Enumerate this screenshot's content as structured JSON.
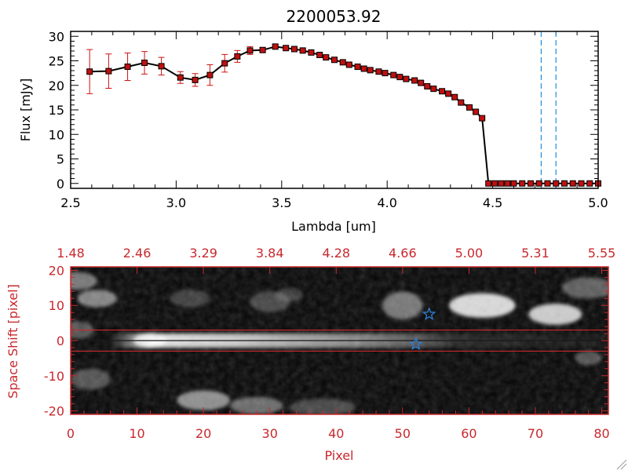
{
  "chart_data": [
    {
      "type": "line",
      "title": "2200053.92",
      "xlabel": "Lambda [um]",
      "ylabel": "Flux [mJy]",
      "xlim": [
        2.5,
        5.0
      ],
      "ylim": [
        -1,
        31
      ],
      "x_ticks": [
        "2.5",
        "3.0",
        "3.5",
        "4.0",
        "4.5",
        "5.0"
      ],
      "y_ticks": [
        "0",
        "5",
        "10",
        "15",
        "20",
        "25",
        "30"
      ],
      "series": [
        {
          "x": [
            2.59,
            2.68,
            2.77,
            2.85,
            2.93,
            3.02,
            3.09,
            3.16,
            3.23,
            3.29,
            3.35,
            3.41,
            3.47,
            3.52,
            3.56,
            3.6,
            3.64,
            3.68,
            3.71,
            3.75,
            3.79,
            3.82,
            3.86,
            3.89,
            3.92,
            3.96,
            3.99,
            4.03,
            4.06,
            4.09,
            4.13,
            4.16,
            4.19,
            4.22,
            4.26,
            4.29,
            4.32,
            4.35,
            4.39,
            4.42,
            4.45,
            4.48,
            4.51,
            4.54,
            4.57,
            4.6,
            4.64,
            4.68,
            4.72,
            4.76,
            4.8,
            4.84,
            4.88,
            4.92,
            4.96,
            5.0
          ],
          "y": [
            22.8,
            22.9,
            23.8,
            24.6,
            23.9,
            21.6,
            21.1,
            22.1,
            24.5,
            25.9,
            27.1,
            27.2,
            27.9,
            27.6,
            27.4,
            27.1,
            26.7,
            26.2,
            25.7,
            25.2,
            24.7,
            24.2,
            23.8,
            23.4,
            23.1,
            22.8,
            22.5,
            22.1,
            21.7,
            21.3,
            21.0,
            20.5,
            19.8,
            19.3,
            18.8,
            18.3,
            17.6,
            16.5,
            15.5,
            14.6,
            13.3,
            0,
            0,
            0,
            0,
            0,
            0,
            0,
            0,
            0,
            0,
            0,
            0,
            0,
            0,
            0
          ],
          "yerr": [
            4.5,
            3.5,
            2.8,
            2.3,
            1.8,
            1.2,
            1.3,
            2.1,
            1.8,
            1.2,
            0.8,
            0.5,
            0.4,
            0.4,
            0.3,
            0.3,
            0.3,
            0.3,
            0.3,
            0.3,
            0.3,
            0.3,
            0.3,
            0.3,
            0.3,
            0.3,
            0.3,
            0.3,
            0.3,
            0.3,
            0.3,
            0.3,
            0.3,
            0.3,
            0.3,
            0.3,
            0.3,
            0.3,
            0.3,
            0.3,
            0.3,
            0,
            0,
            0,
            0,
            0,
            0,
            0,
            0,
            0,
            0,
            0,
            0,
            0,
            0,
            0
          ]
        }
      ],
      "vlines": [
        4.73,
        4.8
      ],
      "colors": {
        "line": "#000000",
        "marker": "#c01010",
        "errorbar": "#d01010",
        "vline": "#1f8fe0"
      }
    },
    {
      "type": "heatmap",
      "xlabel": "Pixel",
      "ylabel": "Space Shift [pixel]",
      "xlim": [
        0,
        81
      ],
      "ylim": [
        -21,
        21
      ],
      "x_ticks": [
        "0",
        "10",
        "20",
        "30",
        "40",
        "50",
        "60",
        "70",
        "80"
      ],
      "y_ticks": [
        "-20",
        "-10",
        "0",
        "10",
        "20"
      ],
      "top_ticks": [
        "1.48",
        "2.46",
        "3.29",
        "3.84",
        "4.28",
        "4.66",
        "5.00",
        "5.31",
        "5.55"
      ],
      "hlines": [
        3,
        -3
      ],
      "hline_center": 0,
      "stars": [
        {
          "x": 54,
          "y": 7.5
        },
        {
          "x": 52,
          "y": -1
        }
      ],
      "features": [
        {
          "x": 1,
          "y": 17,
          "sx": 3,
          "sy": 2.5,
          "a": 0.45
        },
        {
          "x": 4,
          "y": 12,
          "sx": 3,
          "sy": 2.5,
          "a": 0.5
        },
        {
          "x": 1,
          "y": 3,
          "sx": 2.5,
          "sy": 2.5,
          "a": 0.3
        },
        {
          "x": 3,
          "y": -11,
          "sx": 3,
          "sy": 3,
          "a": 0.3
        },
        {
          "x": 18,
          "y": 12,
          "sx": 3,
          "sy": 2.5,
          "a": 0.22
        },
        {
          "x": 30,
          "y": 11,
          "sx": 3,
          "sy": 3,
          "a": 0.25
        },
        {
          "x": 33,
          "y": 13,
          "sx": 2,
          "sy": 2,
          "a": 0.2
        },
        {
          "x": 12,
          "y": 0,
          "sx": 2.5,
          "sy": 2.2,
          "a": 0.75
        },
        {
          "x": 20,
          "y": -17,
          "sx": 4,
          "sy": 2.8,
          "a": 0.55
        },
        {
          "x": 28,
          "y": -18.5,
          "sx": 4,
          "sy": 2.5,
          "a": 0.4
        },
        {
          "x": 38,
          "y": -19,
          "sx": 5,
          "sy": 2.5,
          "a": 0.25
        },
        {
          "x": 50,
          "y": 10,
          "sx": 3,
          "sy": 4,
          "a": 0.45
        },
        {
          "x": 62,
          "y": 10,
          "sx": 5,
          "sy": 3.5,
          "a": 0.85
        },
        {
          "x": 73,
          "y": 7.5,
          "sx": 4,
          "sy": 3,
          "a": 0.8
        },
        {
          "x": 78,
          "y": 15,
          "sx": 4,
          "sy": 3,
          "a": 0.35
        },
        {
          "x": 78,
          "y": -5,
          "sx": 2,
          "sy": 2,
          "a": 0.3
        }
      ],
      "colors": {
        "frame": "#c8282d",
        "star": "#2f7fd8",
        "trace_line": "#1a1a1a"
      }
    }
  ]
}
